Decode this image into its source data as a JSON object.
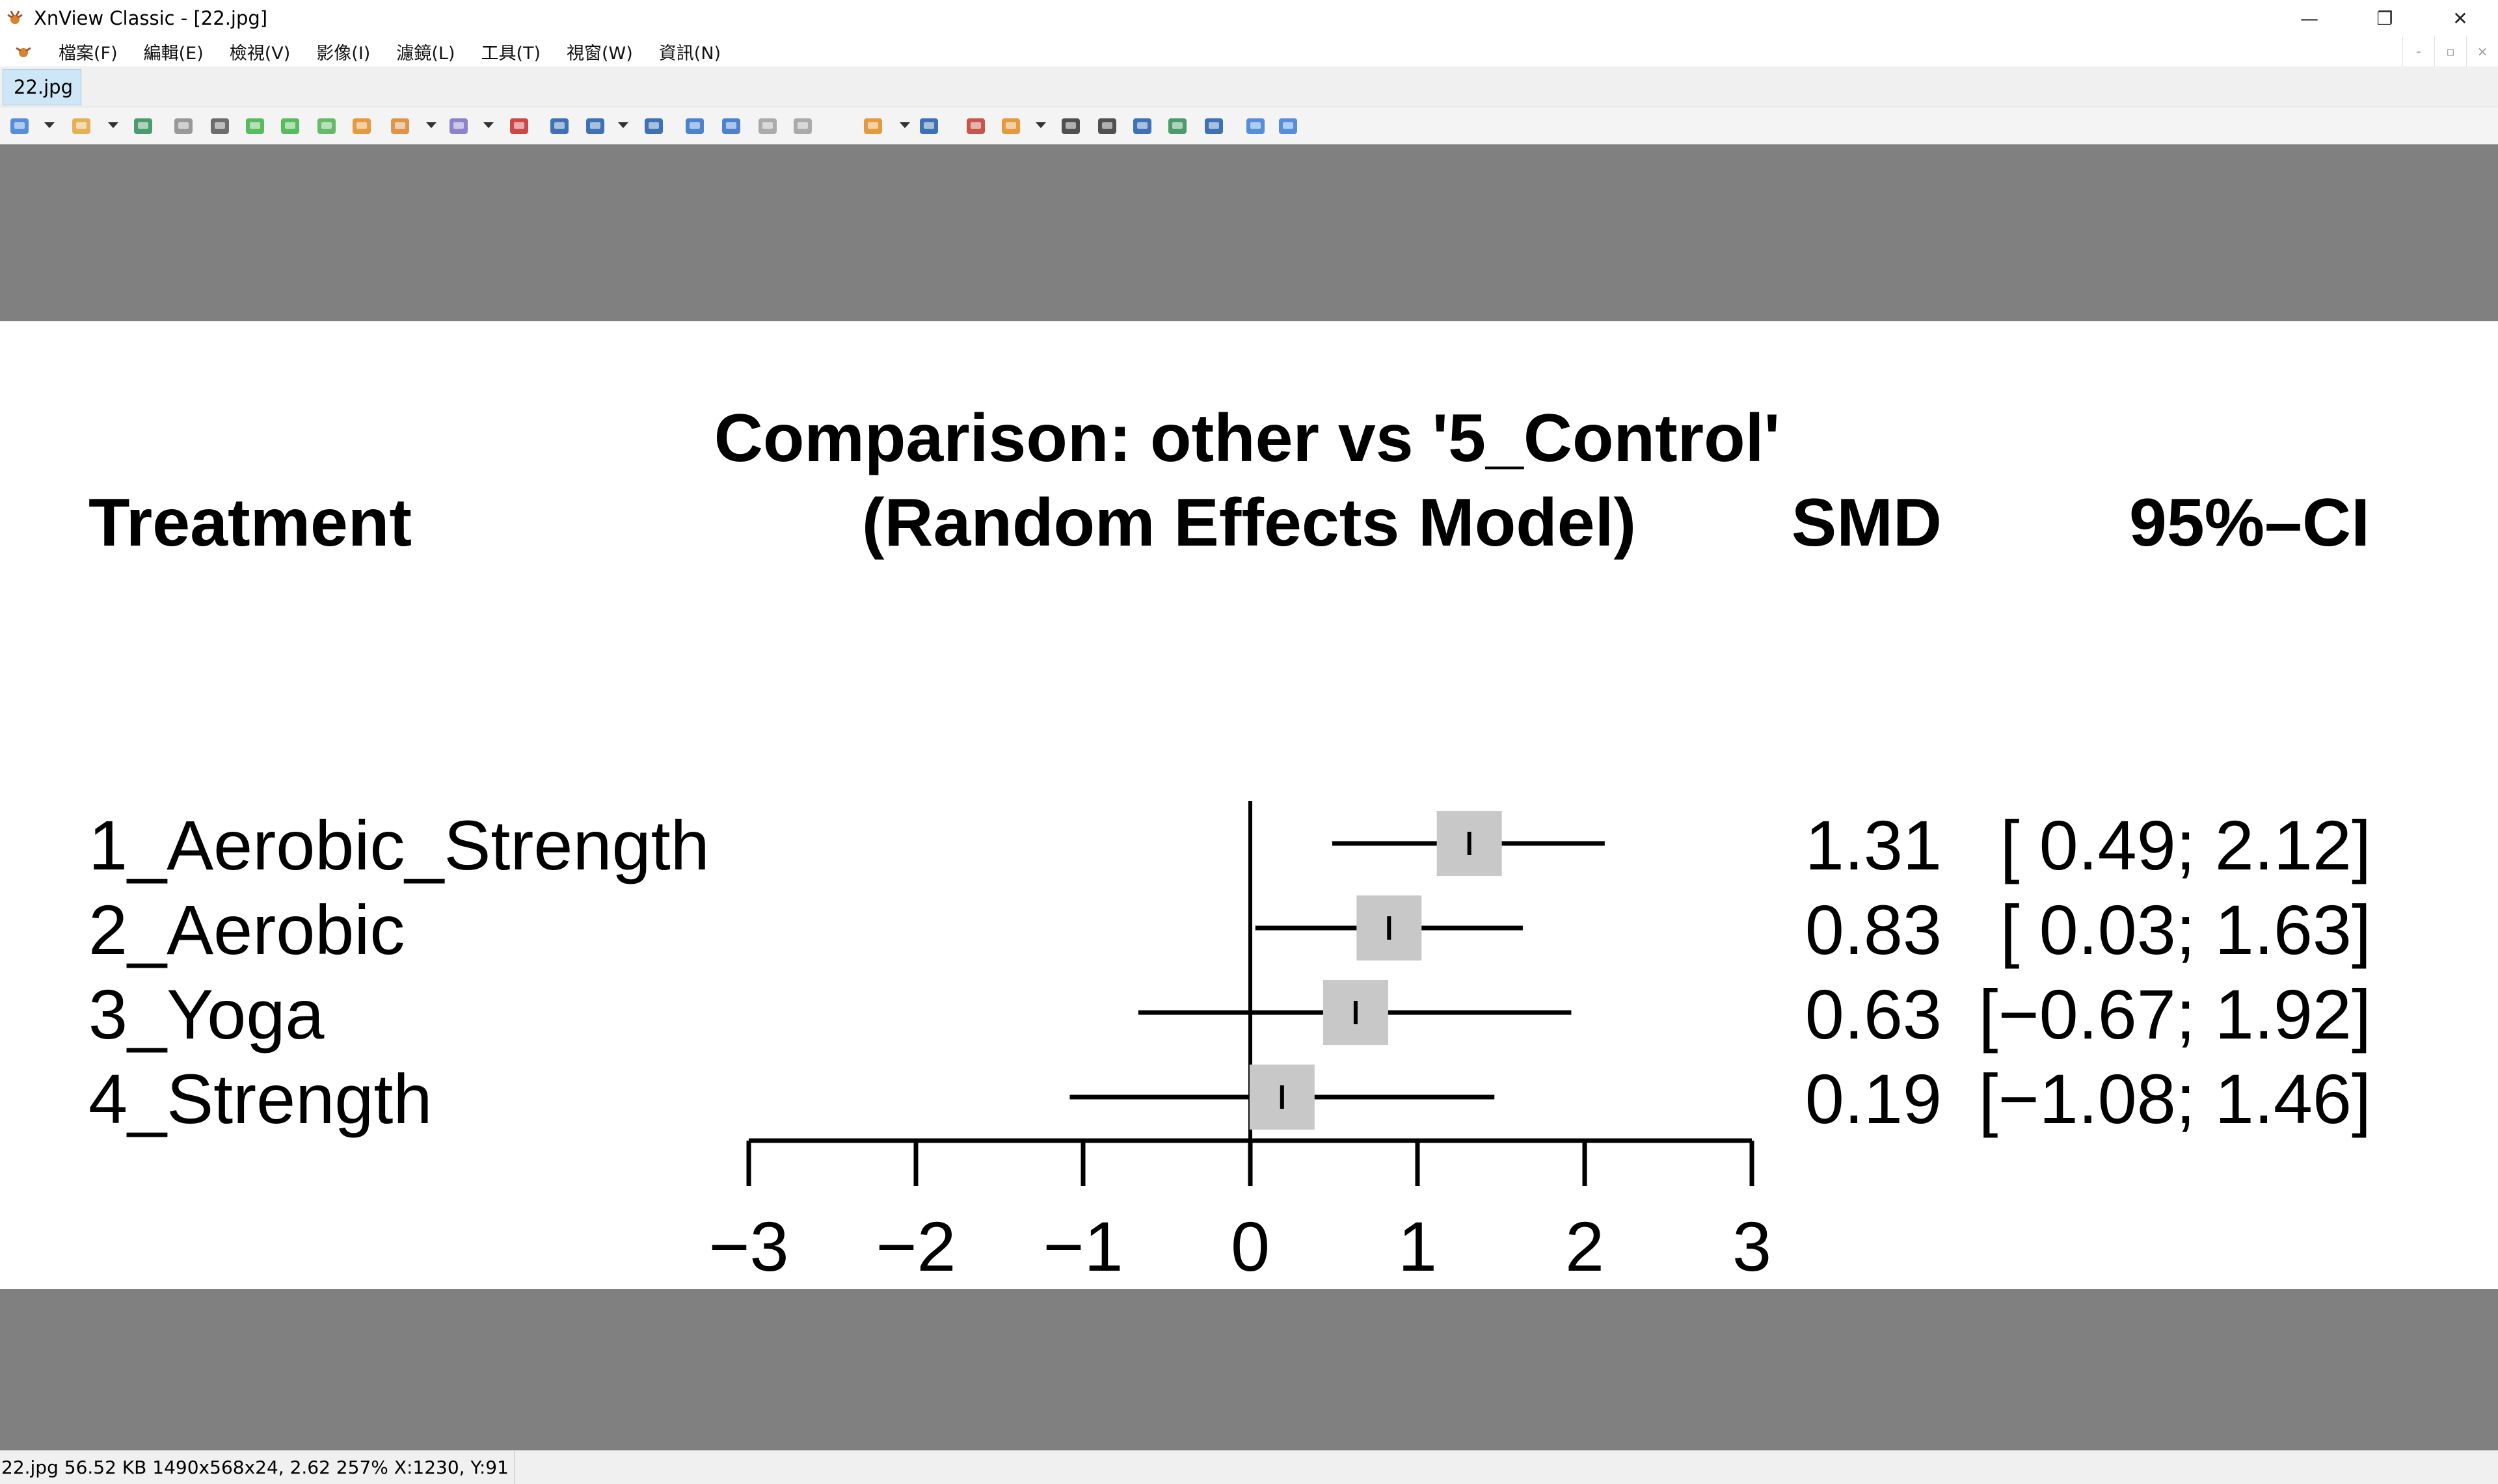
{
  "window": {
    "title": "XnView Classic - [22.jpg]",
    "minimize_glyph": "—",
    "restore_glyph": "❐",
    "close_glyph": "✕"
  },
  "menu": {
    "items": [
      "檔案(F)",
      "編輯(E)",
      "檢視(V)",
      "影像(I)",
      "濾鏡(L)",
      "工具(T)",
      "視窗(W)",
      "資訊(N)"
    ],
    "mdi_glyphs": [
      "-",
      "▫",
      "×"
    ]
  },
  "tab": {
    "label": "22.jpg"
  },
  "toolbar": {
    "buttons": [
      "browser-icon",
      "open-icon",
      "save-icon",
      "undo-icon",
      "crop-icon",
      "rotate-left-icon",
      "rotate-right-icon",
      "export-icon",
      "convert-icon",
      "batch-icon",
      "color-icon",
      "red-eye-icon",
      "zoom-in-icon",
      "zoom-icon",
      "zoom-out-icon",
      "previous-icon",
      "next-icon",
      "page-prev-icon",
      "page-next-icon",
      "slideshow-icon",
      "properties-icon",
      "fullscreen-icon",
      "capture-icon",
      "find-icon",
      "print-icon",
      "scan-icon",
      "wallpaper-icon",
      "screenshot-icon",
      "settings-icon",
      "help-icon"
    ]
  },
  "status": {
    "file": "22.jpg",
    "info": "56.52 KB 1490x568x24, 2.62 257% X:1230, Y:91"
  },
  "colors": {
    "box": "#c8c8c8",
    "line": "#000000",
    "canvas_bg": "#808080",
    "tab_bg": "#cde7f7"
  },
  "chart_data": {
    "type": "forest",
    "title": "Comparison: other vs '5_Control'",
    "subtitle": "(Random Effects Model)",
    "col_treatment": "Treatment",
    "col_smd": "SMD",
    "col_ci": "95%–CI",
    "rows": [
      {
        "label": "1_Aerobic_Strength",
        "smd": 1.31,
        "lo": 0.49,
        "hi": 2.12,
        "smd_text": "1.31",
        "ci_text": "[ 0.49; 2.12]"
      },
      {
        "label": "2_Aerobic",
        "smd": 0.83,
        "lo": 0.03,
        "hi": 1.63,
        "smd_text": "0.83",
        "ci_text": "[ 0.03; 1.63]"
      },
      {
        "label": "3_Yoga",
        "smd": 0.63,
        "lo": -0.67,
        "hi": 1.92,
        "smd_text": "0.63",
        "ci_text": "[−0.67; 1.92]"
      },
      {
        "label": "4_Strength",
        "smd": 0.19,
        "lo": -1.08,
        "hi": 1.46,
        "smd_text": "0.19",
        "ci_text": "[−1.08; 1.46]"
      }
    ],
    "xlim": [
      -3,
      3
    ],
    "ticks": [
      -3,
      -2,
      -1,
      0,
      1,
      2,
      3
    ],
    "tick_labels": [
      "−3",
      "−2",
      "−1",
      "0",
      "1",
      "2",
      "3"
    ]
  }
}
